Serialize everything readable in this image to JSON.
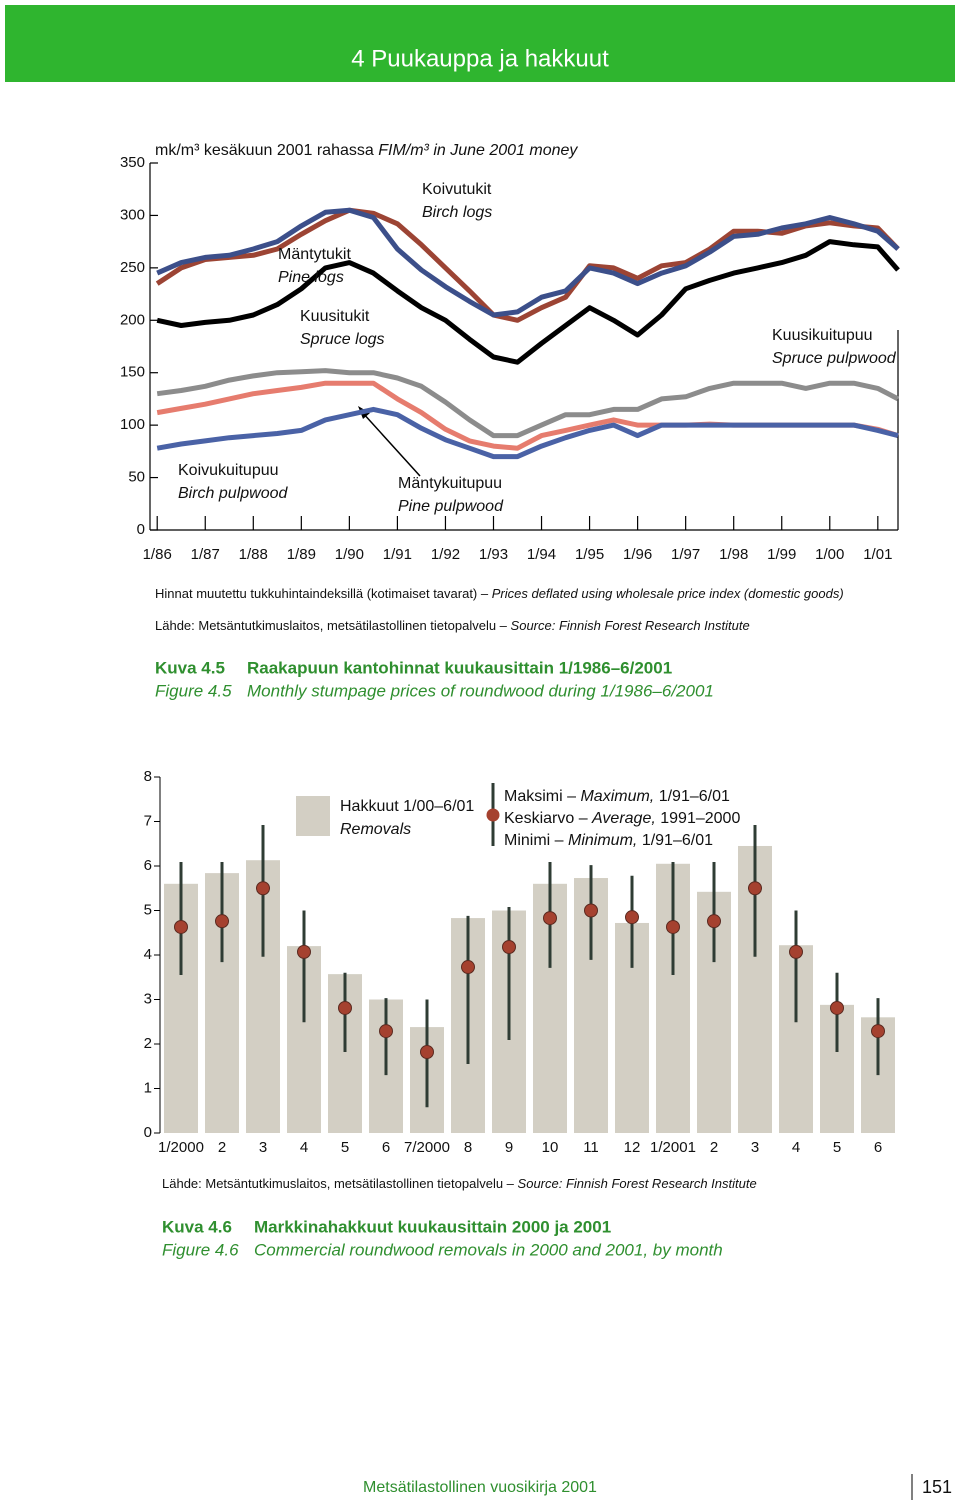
{
  "header": {
    "title": "4 Puukauppa ja hakkuut"
  },
  "chart_data": [
    {
      "type": "line",
      "y_label": "mk/m³ kesäkuun 2001 rahassa",
      "y_label_en": "FIM/m³ in June 2001 money",
      "x": [
        1986,
        1986.5,
        1987,
        1987.5,
        1988,
        1988.5,
        1989,
        1989.5,
        1990,
        1990.5,
        1991,
        1991.5,
        1992,
        1992.5,
        1993,
        1993.5,
        1994,
        1994.5,
        1995,
        1995.5,
        1996,
        1996.5,
        1997,
        1997.5,
        1998,
        1998.5,
        1999,
        1999.5,
        2000,
        2000.5,
        2001,
        2001.42
      ],
      "xlim": [
        1985.85,
        2001.42
      ],
      "xticks": [
        {
          "value": 1986,
          "label": "1/86"
        },
        {
          "value": 1987,
          "label": "1/87"
        },
        {
          "value": 1988,
          "label": "1/88"
        },
        {
          "value": 1989,
          "label": "1/89"
        },
        {
          "value": 1990,
          "label": "1/90"
        },
        {
          "value": 1991,
          "label": "1/91"
        },
        {
          "value": 1992,
          "label": "1/92"
        },
        {
          "value": 1993,
          "label": "1/93"
        },
        {
          "value": 1994,
          "label": "1/94"
        },
        {
          "value": 1995,
          "label": "1/95"
        },
        {
          "value": 1996,
          "label": "1/96"
        },
        {
          "value": 1997,
          "label": "1/97"
        },
        {
          "value": 1998,
          "label": "1/98"
        },
        {
          "value": 1999,
          "label": "1/99"
        },
        {
          "value": 2000,
          "label": "1/00"
        },
        {
          "value": 2001,
          "label": "1/01"
        }
      ],
      "ylim": [
        0,
        350
      ],
      "yticks": [
        0,
        50,
        100,
        150,
        200,
        250,
        300,
        350
      ],
      "series": [
        {
          "name": "Koivutukit",
          "name_en": "Birch logs",
          "color": "#9c4434",
          "values": [
            235,
            250,
            258,
            260,
            262,
            268,
            282,
            295,
            305,
            302,
            292,
            272,
            250,
            228,
            205,
            200,
            212,
            222,
            252,
            250,
            240,
            252,
            255,
            268,
            285,
            285,
            283,
            290,
            293,
            290,
            288,
            268
          ]
        },
        {
          "name": "Mäntytukit",
          "name_en": "Pine logs",
          "color": "#3c4f8a",
          "values": [
            245,
            255,
            260,
            262,
            268,
            275,
            290,
            303,
            305,
            298,
            268,
            248,
            232,
            218,
            205,
            208,
            222,
            228,
            250,
            245,
            235,
            245,
            252,
            265,
            280,
            282,
            288,
            292,
            298,
            292,
            285,
            268
          ]
        },
        {
          "name": "Kuusitukit",
          "name_en": "Spruce logs",
          "color": "#000000",
          "values": [
            200,
            195,
            198,
            200,
            205,
            215,
            230,
            250,
            255,
            245,
            228,
            212,
            200,
            182,
            165,
            160,
            178,
            195,
            212,
            200,
            186,
            205,
            230,
            238,
            245,
            250,
            255,
            262,
            275,
            272,
            270,
            248
          ]
        },
        {
          "name": "Kuusikuitupuu",
          "name_en": "Spruce pulpwood",
          "color": "#8c8c8c",
          "values": [
            130,
            133,
            137,
            143,
            147,
            150,
            151,
            152,
            150,
            150,
            145,
            137,
            122,
            105,
            90,
            90,
            100,
            110,
            110,
            115,
            115,
            125,
            127,
            135,
            140,
            140,
            140,
            135,
            140,
            140,
            135,
            125
          ]
        },
        {
          "name": "Koivukuitupuu",
          "name_en": "Birch pulpwood",
          "color": "#e67c6e",
          "values": [
            112,
            116,
            120,
            125,
            130,
            133,
            136,
            140,
            140,
            140,
            125,
            112,
            96,
            85,
            80,
            78,
            90,
            95,
            100,
            105,
            100,
            100,
            100,
            101,
            100,
            100,
            100,
            100,
            100,
            100,
            96,
            90
          ]
        },
        {
          "name": "Mäntykuitupuu",
          "name_en": "Pine pulpwood",
          "color": "#4a62a6",
          "values": [
            78,
            82,
            85,
            88,
            90,
            92,
            95,
            105,
            110,
            115,
            110,
            97,
            86,
            78,
            70,
            70,
            80,
            88,
            95,
            100,
            90,
            100,
            100,
            100,
            100,
            100,
            100,
            100,
            100,
            100,
            95,
            90
          ]
        }
      ],
      "note": "Hinnat muutettu tukkuhintaindeksillä (kotimaiset tavarat) –",
      "note_en": "Prices deflated using wholesale price index (domestic goods)",
      "source": "Lähde: Metsäntutkimuslaitos, metsätilastollinen tietopalvelu –",
      "source_en": "Source: Finnish Forest Research Institute",
      "caption_label": "Kuva 4.5",
      "caption": "Raakapuun kantohinnat kuukausittain 1/1986–6/2001",
      "caption_label_en": "Figure 4.5",
      "caption_en": "Monthly stumpage prices of roundwood during 1/1986–6/2001"
    },
    {
      "type": "bar",
      "categories": [
        "1/2000",
        "2",
        "3",
        "4",
        "5",
        "6",
        "7/2000",
        "8",
        "9",
        "10",
        "11",
        "12",
        "1/2001",
        "2",
        "3",
        "4",
        "5",
        "6"
      ],
      "values": [
        5.6,
        5.84,
        6.13,
        4.2,
        3.57,
        3.0,
        2.38,
        4.83,
        5.0,
        5.6,
        5.73,
        4.72,
        6.05,
        5.42,
        6.45,
        4.22,
        2.88,
        2.6
      ],
      "average": [
        4.63,
        4.76,
        5.5,
        4.07,
        2.81,
        2.29,
        1.82,
        3.73,
        4.18,
        4.83,
        5.0,
        4.85,
        4.63,
        4.76,
        5.5,
        4.07,
        2.81,
        2.29
      ],
      "maximum": [
        6.09,
        6.09,
        6.92,
        5.0,
        3.6,
        3.03,
        3.0,
        4.88,
        5.08,
        6.09,
        6.02,
        5.78,
        6.09,
        6.09,
        6.92,
        5.0,
        3.6,
        3.03
      ],
      "minimum": [
        3.55,
        3.84,
        3.96,
        2.49,
        1.82,
        1.3,
        0.58,
        1.55,
        2.09,
        3.71,
        3.89,
        3.71,
        3.55,
        3.84,
        3.96,
        2.49,
        1.82,
        1.3
      ],
      "color": "#d3cfc4",
      "dot_color": "#a5412f",
      "range_color": "#2f3c34",
      "ylim": [
        0,
        8
      ],
      "yticks": [
        0,
        1,
        2,
        3,
        4,
        5,
        6,
        7,
        8
      ],
      "legend_bar": {
        "fi": "Hakkuut 1/00–6/01",
        "en": "Removals"
      },
      "legend_range": [
        {
          "fi": "Maksimi –",
          "en": "Maximum,",
          "period": "1/91–6/01"
        },
        {
          "fi": "Keskiarvo –",
          "en": "Average,",
          "period": "1991–2000"
        },
        {
          "fi": "Minimi –",
          "en": "Minimum,",
          "period": "1/91–6/01"
        }
      ],
      "source": "Lähde: Metsäntutkimuslaitos, metsätilastollinen tietopalvelu –",
      "source_en": "Source: Finnish Forest Research Institute",
      "caption_label": "Kuva 4.6",
      "caption": "Markkinahakkuut kuukausittain 2000 ja 2001",
      "caption_label_en": "Figure 4.6",
      "caption_en": "Commercial roundwood removals in 2000 and 2001, by month"
    }
  ],
  "footer": {
    "title": "Metsätilastollinen vuosikirja 2001",
    "page": "151"
  }
}
